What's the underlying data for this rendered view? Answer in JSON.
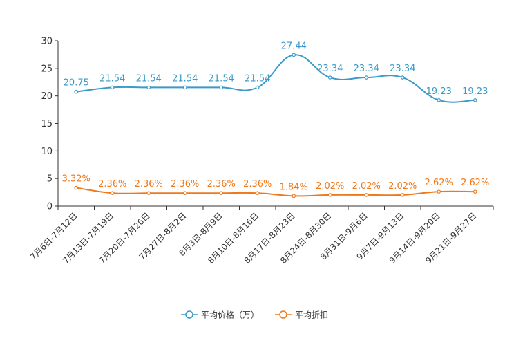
{
  "chart_data": {
    "type": "line",
    "title": "",
    "xlabel": "",
    "ylabel": "",
    "ylim": [
      0,
      30
    ],
    "yticks": [
      0,
      5,
      10,
      15,
      20,
      25,
      30
    ],
    "categories": [
      "7月6日-7月12日",
      "7月13日-7月19日",
      "7月20日-7月26日",
      "7月27日-8月2日",
      "8月3日-8月9日",
      "8月10日-8月16日",
      "8月17日-8月23日",
      "8月24日-8月30日",
      "8月31日-9月6日",
      "9月7日-9月13日",
      "9月14日-9月20日",
      "9月21日-9月27日"
    ],
    "series": [
      {
        "name": "平均价格（万）",
        "color": "#3a9ac9",
        "values": [
          20.75,
          21.54,
          21.54,
          21.54,
          21.54,
          21.54,
          27.44,
          23.34,
          23.34,
          23.34,
          19.23,
          19.23
        ],
        "labels": [
          "20.75",
          "21.54",
          "21.54",
          "21.54",
          "21.54",
          "21.54",
          "27.44",
          "23.34",
          "23.34",
          "23.34",
          "19.23",
          "19.23"
        ]
      },
      {
        "name": "平均折扣",
        "color": "#f07819",
        "values": [
          3.32,
          2.36,
          2.36,
          2.36,
          2.36,
          2.36,
          1.84,
          2.02,
          2.02,
          2.02,
          2.62,
          2.62
        ],
        "labels": [
          "3.32%",
          "2.36%",
          "2.36%",
          "2.36%",
          "2.36%",
          "2.36%",
          "1.84%",
          "2.02%",
          "2.02%",
          "2.02%",
          "2.62%",
          "2.62%"
        ]
      }
    ],
    "legend_position": "bottom-center",
    "grid": false
  }
}
